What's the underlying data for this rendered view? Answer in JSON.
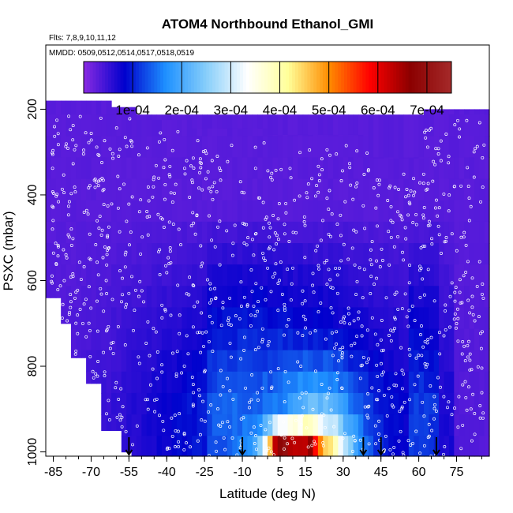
{
  "chart_data": {
    "type": "heatmap",
    "title": "ATOM4 Northbound Ethanol_GMI",
    "flights_note": "Flts: 7,8,9,10,11,12",
    "dates_note": "MMDD: 0509,0512,0514,0517,0518,0519",
    "xlabel": "Latitude (deg N)",
    "ylabel": "PSXC (mbar)",
    "xlim": [
      -88,
      88
    ],
    "ylim": [
      1010,
      50
    ],
    "x_ticks": [
      -85,
      -70,
      -55,
      -40,
      -25,
      -10,
      5,
      15,
      30,
      45,
      60,
      75
    ],
    "y_ticks": [
      200,
      400,
      600,
      800,
      1000
    ],
    "colorbar": {
      "range": [
        0,
        0.00075
      ],
      "ticks": [
        0.0001,
        0.0002,
        0.0003,
        0.0004,
        0.0005,
        0.0006,
        0.0007
      ],
      "tick_labels": [
        "1e-04",
        "2e-04",
        "3e-04",
        "4e-04",
        "5e-04",
        "6e-04",
        "7e-04"
      ],
      "colors": [
        "#8a2be2",
        "#0000cd",
        "#1e90ff",
        "#87cefa",
        "#ffffff",
        "#ffff99",
        "#ff8c00",
        "#ff0000",
        "#8b0000",
        "#a52a2a"
      ]
    },
    "arrow_latitudes": [
      -55,
      -10,
      38,
      45,
      67
    ],
    "pressure_levels": [
      187.5,
      237.5,
      287.5,
      337.5,
      387.5,
      437.5,
      487.5,
      537.5,
      587.5,
      637.5,
      687.5,
      737.5,
      787.5,
      837.5,
      887.5,
      937.5,
      987.5
    ]
  }
}
